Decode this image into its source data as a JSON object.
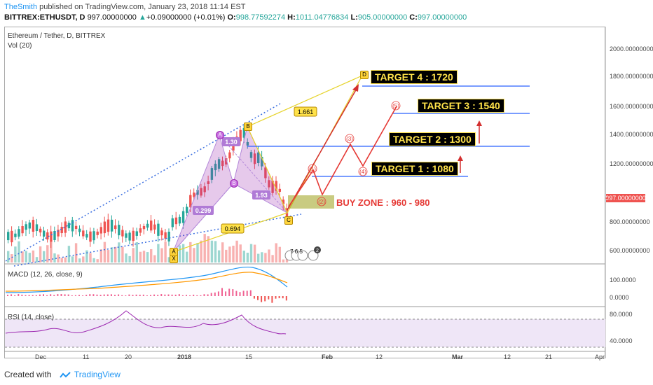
{
  "header": {
    "author": "TheSmith",
    "published": "published on TradingView.com, January 23, 2018 11:14 EST",
    "symbol": "BITTREX:ETHUSDT, D",
    "last": "997.00000000",
    "change": "+0.09000000 (+0.01%)",
    "o_label": "O:",
    "o_val": "998.77592274",
    "h_label": "H:",
    "h_val": "1011.04776834",
    "l_label": "L:",
    "l_val": "905.00000000",
    "c_label": "C:",
    "c_val": "997.00000000"
  },
  "chart": {
    "title": "Ethereum / Tether, D, BITTREX",
    "vol_label": "Vol (20)",
    "macd_label": "MACD (12, 26, close, 9)",
    "rsi_label": "RSI (14, close)",
    "price_badge": "997.00000000",
    "y_axis_main": [
      "2000.00000000",
      "1800.00000000",
      "1600.00000000",
      "1400.00000000",
      "1200.00000000",
      "800.00000000",
      "600.00000000"
    ],
    "y_axis_macd": [
      "100.0000",
      "0.0000"
    ],
    "y_axis_rsi": [
      "80.0000",
      "40.0000"
    ],
    "x_axis": [
      "Dec",
      "11",
      "20",
      "2018",
      "15",
      "Feb",
      "12",
      "Mar",
      "12",
      "21",
      "Apr"
    ],
    "targets": [
      "TARGET 4 : 1720",
      "TARGET 3 : 1540",
      "TARGET 2 : 1300",
      "TARGET 1 : 1080"
    ],
    "buy_zone": "BUY ZONE :  960 - 980",
    "fib_labels": [
      "1.661",
      "1.30",
      "0.299",
      "1.93",
      "0.694"
    ],
    "points": [
      "A",
      "B",
      "C",
      "D",
      "X"
    ],
    "wave_labels": [
      "(1)",
      "(2)",
      "(3)",
      "(4)",
      "(5)"
    ],
    "icons_badge": "7 6 5",
    "icons_badge2": "2",
    "colors": {
      "bull": "#26a69a",
      "bear": "#ef5350",
      "pattern": "#9c27b0",
      "target_line": "#2962ff",
      "wave": "#e53935"
    }
  },
  "footer": {
    "created": "Created with",
    "brand": "TradingView"
  }
}
